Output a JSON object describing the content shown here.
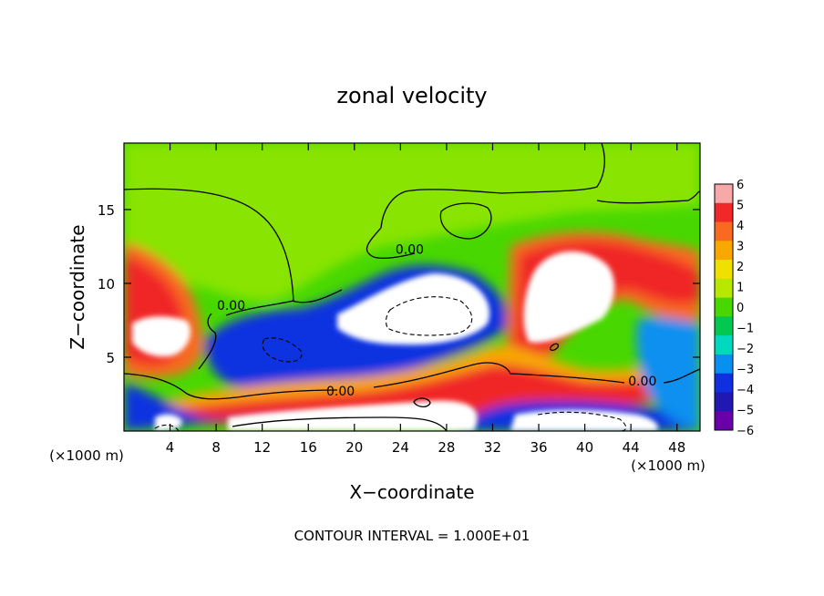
{
  "chart_data": {
    "type": "heatmap",
    "title": "zonal velocity",
    "xlabel": "X−coordinate",
    "ylabel": "Z−coordinate",
    "x_unit": "(×1000 m)",
    "y_unit": "(×1000 m)",
    "xlim": [
      0,
      50
    ],
    "ylim": [
      0,
      19.5
    ],
    "x_ticks": [
      4,
      8,
      12,
      16,
      20,
      24,
      28,
      32,
      36,
      40,
      44,
      48
    ],
    "y_ticks": [
      5,
      10,
      15
    ],
    "colorbar": {
      "levels": [
        6,
        5,
        4,
        3,
        2,
        1,
        0,
        -1,
        -2,
        -3,
        -4,
        -5,
        -6
      ],
      "colors": [
        "#f7a8a8",
        "#f02828",
        "#f86a20",
        "#f8a800",
        "#f0e000",
        "#b8e800",
        "#48d800",
        "#00c850",
        "#00d8c0",
        "#0890f0",
        "#1030e0",
        "#2018b0",
        "#6a00a8"
      ],
      "over_color": "#ffffff"
    },
    "contour_labels": [
      {
        "text": "0.00",
        "x": 9.3,
        "z": 8.2
      },
      {
        "text": "0.00",
        "x": 24.8,
        "z": 12.0
      },
      {
        "text": "0.00",
        "x": 18.8,
        "z": 2.4
      },
      {
        "text": "0.00",
        "x": 45.0,
        "z": 3.1
      }
    ],
    "footer": "CONTOUR INTERVAL = 1.000E+01"
  }
}
